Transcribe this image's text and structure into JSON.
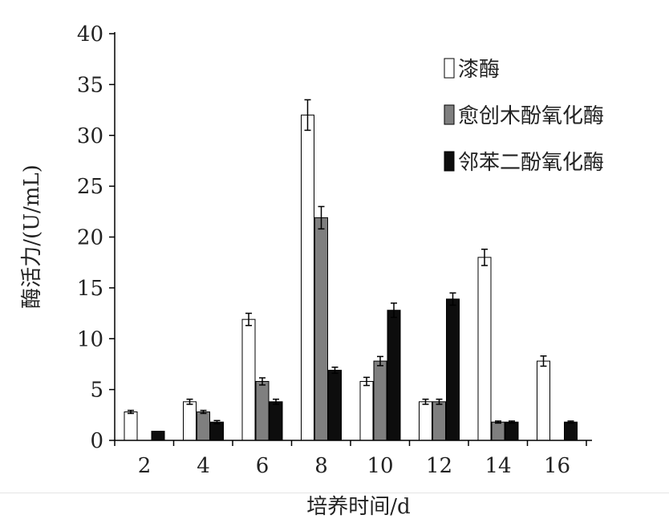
{
  "chart_data": {
    "type": "bar",
    "xlabel": "培养时间/d",
    "ylabel": "酶活力/(U/mL)",
    "categories": [
      "2",
      "4",
      "6",
      "8",
      "10",
      "12",
      "14",
      "16"
    ],
    "ylim": [
      0,
      40
    ],
    "yticks": [
      0,
      5,
      10,
      15,
      20,
      25,
      30,
      35,
      40
    ],
    "grid": false,
    "legend_position": "top-right",
    "series": [
      {
        "name": "漆酶",
        "color": "#ffffff",
        "values": [
          2.8,
          3.8,
          11.9,
          32.0,
          5.8,
          3.8,
          18.0,
          7.8
        ],
        "errors": [
          0.15,
          0.25,
          0.6,
          1.5,
          0.4,
          0.25,
          0.8,
          0.5
        ]
      },
      {
        "name": "愈创木酚氧化酶",
        "color": "#7f7f7f",
        "values": [
          0,
          2.8,
          5.8,
          21.9,
          7.8,
          3.8,
          1.8,
          0
        ],
        "errors": [
          0,
          0.15,
          0.35,
          1.1,
          0.45,
          0.25,
          0.1,
          0
        ]
      },
      {
        "name": "邻苯二酚氧化酶",
        "color": "#0d0d0d",
        "values": [
          0.9,
          1.8,
          3.8,
          6.9,
          12.8,
          13.9,
          1.8,
          1.8
        ],
        "errors": [
          0,
          0.15,
          0.25,
          0.3,
          0.7,
          0.6,
          0.1,
          0.1
        ]
      }
    ]
  }
}
